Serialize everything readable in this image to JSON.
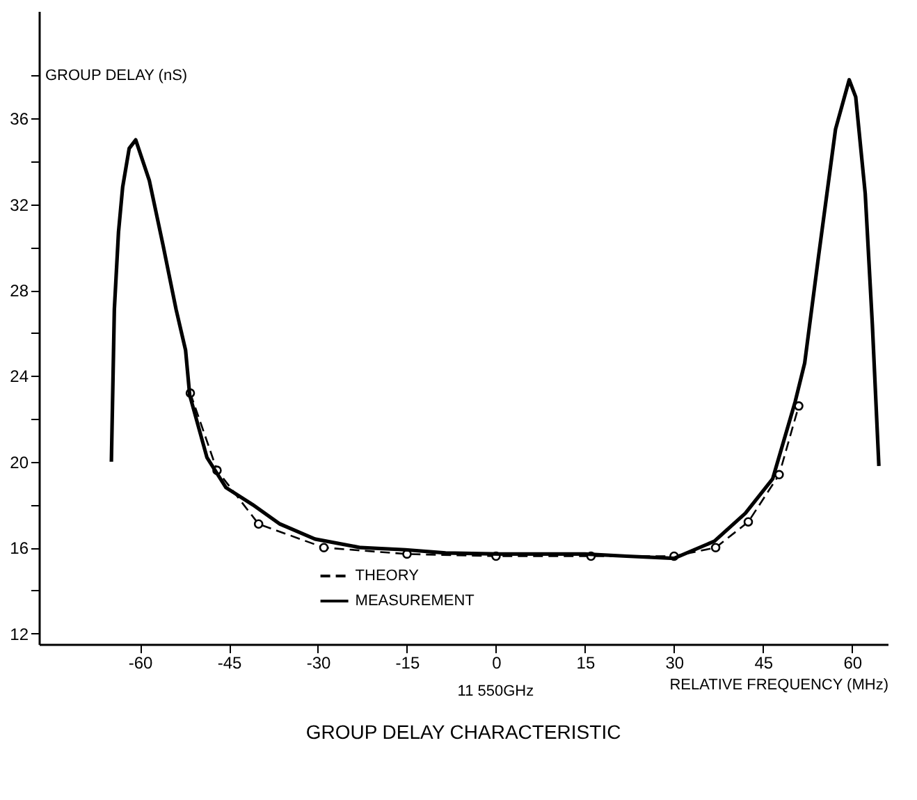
{
  "chart_data": {
    "type": "line",
    "title": "GROUP DELAY CHARACTERISTIC",
    "xlabel": "RELATIVE FREQUENCY (MHz)",
    "ylabel": "GROUP DELAY (nS)",
    "annotations": [
      "11 550GHz"
    ],
    "xlim": [
      -77,
      66
    ],
    "ylim": [
      11.5,
      41
    ],
    "xticks": [
      -60,
      -45,
      -30,
      -15,
      0,
      15,
      30,
      45,
      60
    ],
    "yticks": [
      12,
      {
        "value": 14,
        "label": null
      },
      16,
      {
        "value": 18,
        "label": null
      },
      20,
      {
        "value": 22,
        "label": null
      },
      24,
      {
        "value": 26,
        "label": null
      },
      28,
      {
        "value": 30,
        "label": null
      },
      32,
      {
        "value": 34,
        "label": null
      },
      36,
      {
        "value": 38,
        "label": null
      }
    ],
    "grid": false,
    "legend": "bottom",
    "series": [
      {
        "name": "THEORY",
        "color": "#000000",
        "marker": "circle",
        "line_style": "dashed",
        "x": [
          -51.5,
          -47,
          -40,
          -29,
          -15,
          0,
          16,
          30,
          37,
          42.5,
          47.7,
          51
        ],
        "values": [
          23.2,
          19.6,
          17.1,
          16.0,
          15.7,
          15.6,
          15.6,
          15.6,
          16.0,
          17.2,
          19.4,
          22.6
        ]
      },
      {
        "name": "MEASUREMENT",
        "color": "#000000",
        "marker": "none",
        "line_style": "solid",
        "x": [
          -64.8,
          -64.3,
          -63.6,
          -62.9,
          -61.8,
          -60.7,
          -58.4,
          -56.1,
          -53.9,
          -52.3,
          -51.6,
          -48.7,
          -45.5,
          -41,
          -36.4,
          -30.5,
          -22.8,
          -15.3,
          -8.5,
          0.5,
          15,
          22,
          30,
          36.8,
          42,
          46.6,
          50.4,
          52,
          54.3,
          57.2,
          59.5,
          60.6,
          62.2,
          63.4,
          64.5
        ],
        "values": [
          20.0,
          27.1,
          30.7,
          32.8,
          34.6,
          35.0,
          33.1,
          30.1,
          27.1,
          25.2,
          23.1,
          20.2,
          18.8,
          18.0,
          17.1,
          16.4,
          16.0,
          15.9,
          15.75,
          15.7,
          15.7,
          15.6,
          15.5,
          16.3,
          17.6,
          19.2,
          22.8,
          24.6,
          29.5,
          35.5,
          37.8,
          37.0,
          32.5,
          26.4,
          19.8
        ]
      }
    ]
  }
}
